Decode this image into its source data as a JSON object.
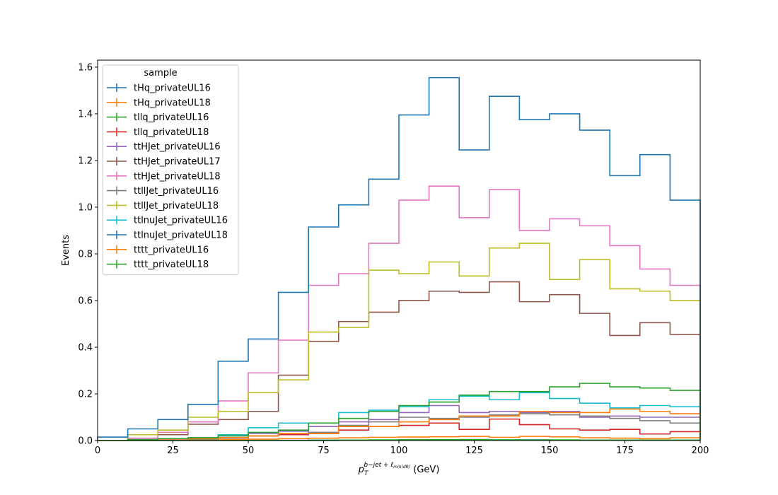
{
  "chart_data": {
    "type": "line",
    "style": "step-histogram",
    "xlabel_base": "p",
    "xlabel_sub": "T",
    "xlabel_sup": "b−jet + ℓ",
    "xlabel_sup_sub": "min(dR)",
    "xlabel_unit": "(GeV)",
    "ylabel": "Events",
    "xlim": [
      0,
      200
    ],
    "ylim": [
      0,
      1.63
    ],
    "x_ticks": [
      "0",
      "25",
      "50",
      "75",
      "100",
      "125",
      "150",
      "175",
      "200"
    ],
    "y_ticks": [
      "0.0",
      "0.2",
      "0.4",
      "0.6",
      "0.8",
      "1.0",
      "1.2",
      "1.4",
      "1.6"
    ],
    "bin_edges": [
      0,
      10,
      20,
      30,
      40,
      50,
      60,
      70,
      80,
      90,
      100,
      110,
      120,
      130,
      140,
      150,
      160,
      170,
      180,
      190,
      200
    ],
    "legend": {
      "title": "sample",
      "position": "upper-left"
    },
    "grid": false,
    "series": [
      {
        "name": "tHq_privateUL16",
        "color": "#1f77b4",
        "values": [
          0.0,
          0.0,
          0.0,
          0.0,
          0.0,
          0.0,
          0.0,
          0.0,
          0.001,
          0.002,
          0.003,
          0.003,
          0.004,
          0.003,
          0.003,
          0.002,
          0.002,
          0.002,
          0.001,
          0.001
        ]
      },
      {
        "name": "tHq_privateUL18",
        "color": "#ff7f0e",
        "values": [
          0.0,
          0.0,
          0.001,
          0.002,
          0.004,
          0.006,
          0.008,
          0.01,
          0.012,
          0.014,
          0.015,
          0.016,
          0.018,
          0.014,
          0.018,
          0.016,
          0.012,
          0.01,
          0.008,
          0.012
        ]
      },
      {
        "name": "tllq_privateUL16",
        "color": "#2ca02c",
        "values": [
          0.0,
          0.0,
          0.0,
          0.0,
          0.0,
          0.001,
          0.001,
          0.002,
          0.002,
          0.003,
          0.004,
          0.004,
          0.004,
          0.003,
          0.003,
          0.003,
          0.002,
          0.002,
          0.002,
          0.002
        ]
      },
      {
        "name": "tllq_privateUL18",
        "color": "#d62728",
        "values": [
          0.0,
          0.003,
          0.005,
          0.008,
          0.012,
          0.02,
          0.025,
          0.03,
          0.045,
          0.06,
          0.065,
          0.075,
          0.048,
          0.092,
          0.068,
          0.05,
          0.045,
          0.048,
          0.028,
          0.038
        ]
      },
      {
        "name": "ttHJet_privateUL16",
        "color": "#9467bd",
        "values": [
          0.0,
          0.004,
          0.008,
          0.012,
          0.02,
          0.03,
          0.04,
          0.06,
          0.08,
          0.09,
          0.12,
          0.15,
          0.12,
          0.125,
          0.12,
          0.125,
          0.1,
          0.105,
          0.1,
          0.1
        ]
      },
      {
        "name": "ttHJet_privateUL17",
        "color": "#8c564b",
        "values": [
          0.0,
          0.01,
          0.025,
          0.07,
          0.09,
          0.125,
          0.28,
          0.425,
          0.51,
          0.55,
          0.6,
          0.64,
          0.635,
          0.68,
          0.595,
          0.625,
          0.545,
          0.45,
          0.505,
          0.455
        ]
      },
      {
        "name": "ttHJet_privateUL18",
        "color": "#e377c2",
        "values": [
          0.0,
          0.01,
          0.035,
          0.08,
          0.17,
          0.29,
          0.43,
          0.665,
          0.715,
          0.845,
          1.03,
          1.09,
          0.955,
          1.075,
          0.9,
          0.95,
          0.92,
          0.835,
          0.735,
          0.665
        ]
      },
      {
        "name": "ttllJet_privateUL16",
        "color": "#7f7f7f",
        "values": [
          0.0,
          0.002,
          0.004,
          0.006,
          0.01,
          0.02,
          0.03,
          0.035,
          0.065,
          0.08,
          0.1,
          0.095,
          0.1,
          0.11,
          0.115,
          0.11,
          0.105,
          0.095,
          0.085,
          0.075
        ]
      },
      {
        "name": "ttllJet_privateUL18",
        "color": "#bcbd22",
        "values": [
          0.0,
          0.025,
          0.045,
          0.1,
          0.125,
          0.205,
          0.26,
          0.465,
          0.485,
          0.73,
          0.715,
          0.765,
          0.705,
          0.825,
          0.845,
          0.69,
          0.775,
          0.65,
          0.64,
          0.6
        ]
      },
      {
        "name": "ttlnuJet_privateUL16",
        "color": "#17becf",
        "values": [
          0.0,
          0.003,
          0.006,
          0.012,
          0.025,
          0.055,
          0.075,
          0.075,
          0.12,
          0.13,
          0.145,
          0.175,
          0.19,
          0.175,
          0.205,
          0.18,
          0.16,
          0.14,
          0.15,
          0.145
        ]
      },
      {
        "name": "ttlnuJet_privateUL18",
        "color": "#1f77b4",
        "values": [
          0.015,
          0.05,
          0.09,
          0.155,
          0.34,
          0.435,
          0.635,
          0.915,
          1.01,
          1.12,
          1.395,
          1.555,
          1.245,
          1.475,
          1.375,
          1.4,
          1.33,
          1.135,
          1.225,
          1.03
        ]
      },
      {
        "name": "tttt_privateUL16",
        "color": "#ff7f0e",
        "values": [
          0.0,
          0.004,
          0.006,
          0.008,
          0.012,
          0.02,
          0.03,
          0.03,
          0.06,
          0.06,
          0.08,
          0.09,
          0.105,
          0.105,
          0.125,
          0.12,
          0.12,
          0.135,
          0.125,
          0.115
        ]
      },
      {
        "name": "tttt_privateUL18",
        "color": "#2ca02c",
        "values": [
          0.0,
          0.004,
          0.008,
          0.012,
          0.02,
          0.035,
          0.045,
          0.075,
          0.095,
          0.125,
          0.15,
          0.165,
          0.195,
          0.21,
          0.21,
          0.23,
          0.245,
          0.23,
          0.225,
          0.215
        ]
      }
    ]
  }
}
